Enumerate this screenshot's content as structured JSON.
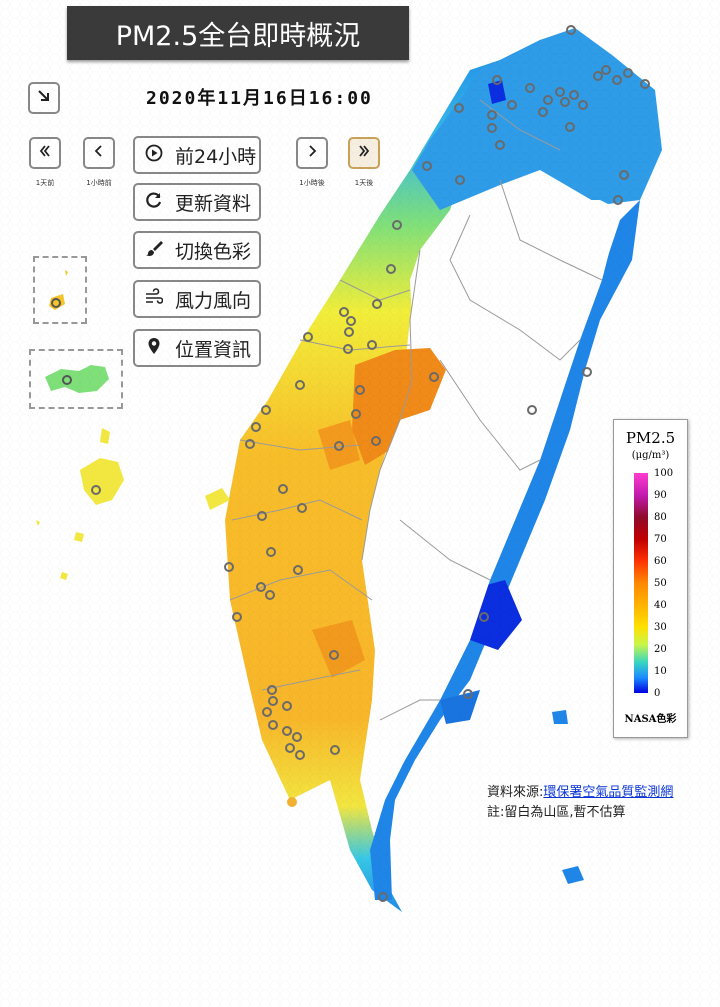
{
  "title": "PM2.5全台即時概況",
  "datetime": "2020年11月16日16:00",
  "controls": {
    "collapse_icon": "arrow-down-right-icon",
    "prev_day_caption": "1天前",
    "prev_hour_caption": "1小時前",
    "next_hour_caption": "1小時後",
    "next_day_caption": "1天後",
    "past24_label": "前24小時",
    "refresh_label": "更新資料",
    "color_label": "切換色彩",
    "wind_label": "風力風向",
    "location_label": "位置資訊"
  },
  "legend": {
    "title": "PM2.5",
    "unit": "(μg/m³)",
    "ticks": [
      "100",
      "90",
      "80",
      "70",
      "60",
      "50",
      "40",
      "30",
      "20",
      "10",
      "0"
    ],
    "note": "NASA色彩"
  },
  "source": {
    "prefix": "資料來源:",
    "link": "環保署空氣品質監測網",
    "note": "註:留白為山區,暫不估算"
  },
  "colors": {
    "very_low": "#0a2ee0",
    "low": "#1f8ae8",
    "low_mid": "#36c7e6",
    "mid_low": "#7fe07a",
    "mid": "#f2ee3a",
    "mid_high": "#f8be2a",
    "high": "#f79a1e",
    "higher": "#f07a14"
  }
}
